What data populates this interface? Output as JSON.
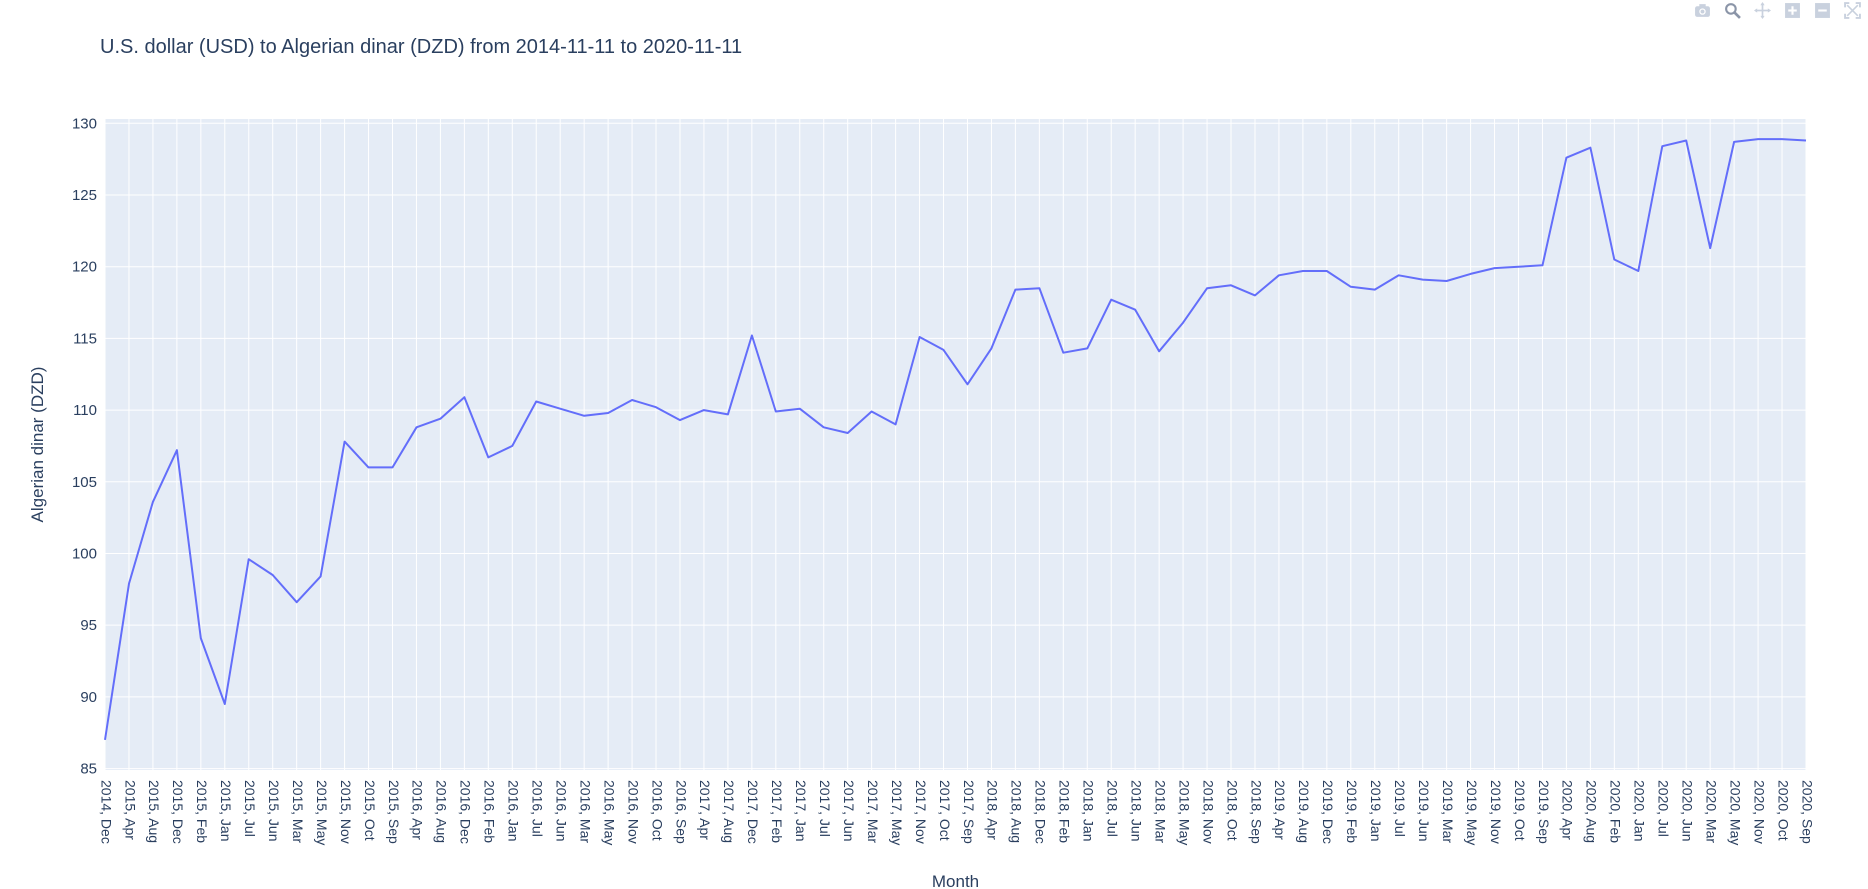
{
  "toolbar": {
    "camera_icon": "camera-icon",
    "zoom_icon": "zoom-icon",
    "pan_icon": "pan-icon",
    "zoom_in_icon": "zoom-in-icon",
    "zoom_out_icon": "zoom-out-icon",
    "autoscale_icon": "autoscale-icon"
  },
  "colors": {
    "line": "#636efa",
    "plot_bg": "#e5ecf6",
    "grid": "#ffffff",
    "text": "#2a3f5f"
  },
  "chart_data": {
    "type": "line",
    "title": "U.S. dollar (USD) to Algerian dinar  (DZD) from 2014-11-11 to 2020-11-11",
    "xlabel": "Month",
    "ylabel": "Algerian dinar  (DZD)",
    "ylim": [
      84.9,
      130.3
    ],
    "yticks": [
      85,
      90,
      95,
      100,
      105,
      110,
      115,
      120,
      125,
      130
    ],
    "grid": true,
    "categories": [
      "2014, Dec",
      "2015, Apr",
      "2015, Aug",
      "2015, Dec",
      "2015, Feb",
      "2015, Jan",
      "2015, Jul",
      "2015, Jun",
      "2015, Mar",
      "2015, May",
      "2015, Nov",
      "2015, Oct",
      "2015, Sep",
      "2016, Apr",
      "2016, Aug",
      "2016, Dec",
      "2016, Feb",
      "2016, Jan",
      "2016, Jul",
      "2016, Jun",
      "2016, Mar",
      "2016, May",
      "2016, Nov",
      "2016, Oct",
      "2016, Sep",
      "2017, Apr",
      "2017, Aug",
      "2017, Dec",
      "2017, Feb",
      "2017, Jan",
      "2017, Jul",
      "2017, Jun",
      "2017, Mar",
      "2017, May",
      "2017, Nov",
      "2017, Oct",
      "2017, Sep",
      "2018, Apr",
      "2018, Aug",
      "2018, Dec",
      "2018, Feb",
      "2018, Jan",
      "2018, Jul",
      "2018, Jun",
      "2018, Mar",
      "2018, May",
      "2018, Nov",
      "2018, Oct",
      "2018, Sep",
      "2019, Apr",
      "2019, Aug",
      "2019, Dec",
      "2019, Feb",
      "2019, Jan",
      "2019, Jul",
      "2019, Jun",
      "2019, Mar",
      "2019, May",
      "2019, Nov",
      "2019, Oct",
      "2019, Sep",
      "2020, Apr",
      "2020, Aug",
      "2020, Feb",
      "2020, Jan",
      "2020, Jul",
      "2020, Jun",
      "2020, Mar",
      "2020, May",
      "2020, Nov",
      "2020, Oct",
      "2020, Sep"
    ],
    "series": [
      {
        "values": [
          87.0,
          97.9,
          103.6,
          107.2,
          94.1,
          89.5,
          99.6,
          98.5,
          96.6,
          98.4,
          107.8,
          106.0,
          106.0,
          108.8,
          109.4,
          110.9,
          106.7,
          107.5,
          110.6,
          110.1,
          109.6,
          109.8,
          110.7,
          110.2,
          109.3,
          110.0,
          109.7,
          115.2,
          109.9,
          110.1,
          108.8,
          108.4,
          109.9,
          109.0,
          115.1,
          114.2,
          111.8,
          114.3,
          118.4,
          118.5,
          114.0,
          114.3,
          117.7,
          117.0,
          114.1,
          116.1,
          118.5,
          118.7,
          118.0,
          119.4,
          119.7,
          119.7,
          118.6,
          118.4,
          119.4,
          119.1,
          119.0,
          119.5,
          119.9,
          120.0,
          120.1,
          127.6,
          128.3,
          120.5,
          119.7,
          128.4,
          128.8,
          121.3,
          128.7,
          128.9,
          128.9,
          128.8
        ]
      }
    ]
  }
}
